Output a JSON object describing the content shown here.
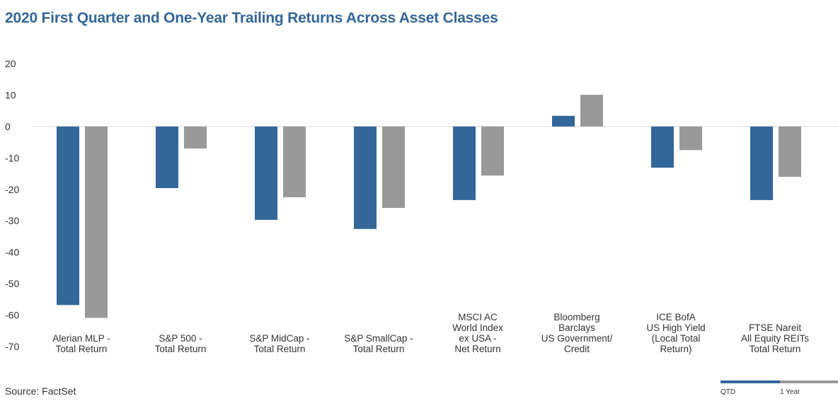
{
  "title": "2020 First Quarter and One-Year Trailing Returns Across Asset Classes",
  "source": "Source: FactSet",
  "chart_data": {
    "type": "bar",
    "title": "2020 First Quarter and One-Year Trailing Returns Across Asset Classes",
    "xlabel": "",
    "ylabel": "",
    "ylim": [
      -70,
      20
    ],
    "yticks": [
      20,
      10,
      0,
      -10,
      -20,
      -30,
      -40,
      -50,
      -60,
      -70
    ],
    "grid": false,
    "legend_position": "bottom-right",
    "categories": [
      [
        "Alerian MLP -",
        "Total Return"
      ],
      [
        "S&P 500 -",
        "Total Return"
      ],
      [
        "S&P MidCap -",
        "Total Return"
      ],
      [
        "S&P SmallCap -",
        "Total Return"
      ],
      [
        "MSCI AC",
        "World Index",
        "ex USA -",
        "Net Return"
      ],
      [
        "Bloomberg",
        "Barclays",
        "US Government/",
        "Credit"
      ],
      [
        "ICE BofA",
        "US High Yield",
        "(Local Total",
        "Return)"
      ],
      [
        "FTSE Nareit",
        "All Equity REITs",
        "Total Return"
      ]
    ],
    "series": [
      {
        "name": "QTD",
        "color": "#336699",
        "values": [
          -56.8,
          -19.6,
          -29.7,
          -32.6,
          -23.4,
          3.4,
          -13.1,
          -23.4
        ]
      },
      {
        "name": "1 Year",
        "color": "#999999",
        "values": [
          -60.9,
          -7.0,
          -22.5,
          -25.9,
          -15.6,
          10.1,
          -7.5,
          -16.0
        ]
      }
    ]
  }
}
